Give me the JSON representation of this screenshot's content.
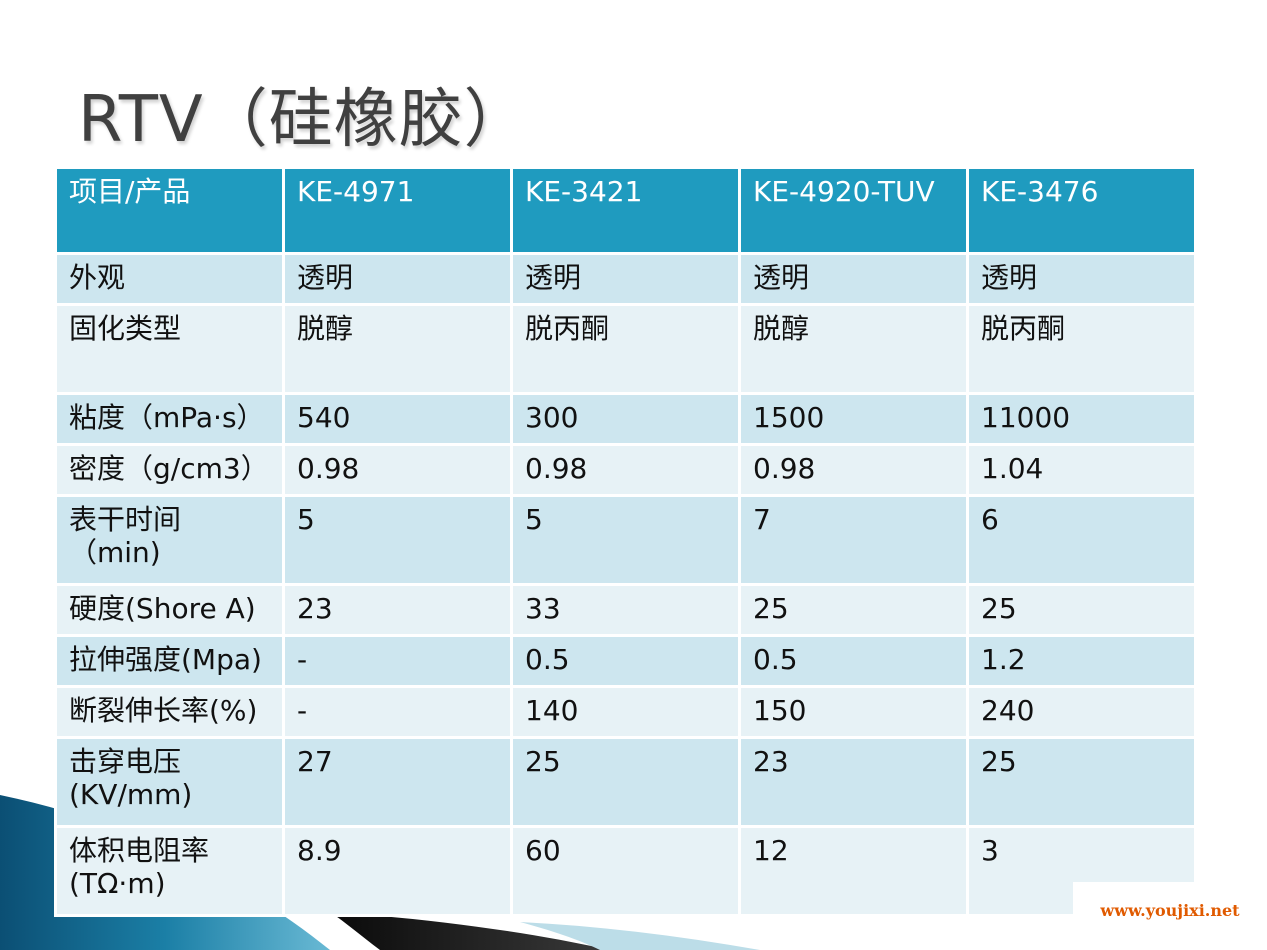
{
  "title": "RTV（硅橡胶）",
  "table": {
    "header": [
      "项目/产品",
      "KE-4971",
      "KE-3421",
      "KE-4920-TUV",
      "KE-3476"
    ],
    "rows": [
      [
        "外观",
        "透明",
        "透明",
        "透明",
        "透明"
      ],
      [
        "固化类型",
        "脱醇",
        "脱丙酮",
        "脱醇",
        "脱丙酮"
      ],
      [
        "粘度（mPa·s）",
        "540",
        "300",
        "1500",
        "11000"
      ],
      [
        "密度（g/cm3）",
        "0.98",
        "0.98",
        "0.98",
        "1.04"
      ],
      [
        "表干时间（min)",
        "5",
        "5",
        "7",
        "6"
      ],
      [
        "硬度(Shore A)",
        "23",
        "33",
        "25",
        "25"
      ],
      [
        "拉伸强度(Mpa)",
        "-",
        "0.5",
        "0.5",
        "1.2"
      ],
      [
        "断裂伸长率(%)",
        "-",
        "140",
        "150",
        "240"
      ],
      [
        "击穿电压(KV/mm)",
        "27",
        "25",
        "23",
        "25"
      ],
      [
        "体积电阻率(TΩ·m)",
        "8.9",
        "60",
        "12",
        "3"
      ]
    ]
  },
  "watermark": "www.youjixi.net",
  "colors": {
    "header_bg": "#1f9bbf",
    "row_odd": "#cde6ef",
    "row_even": "#e7f2f6",
    "accent": "#1b7fa6"
  }
}
